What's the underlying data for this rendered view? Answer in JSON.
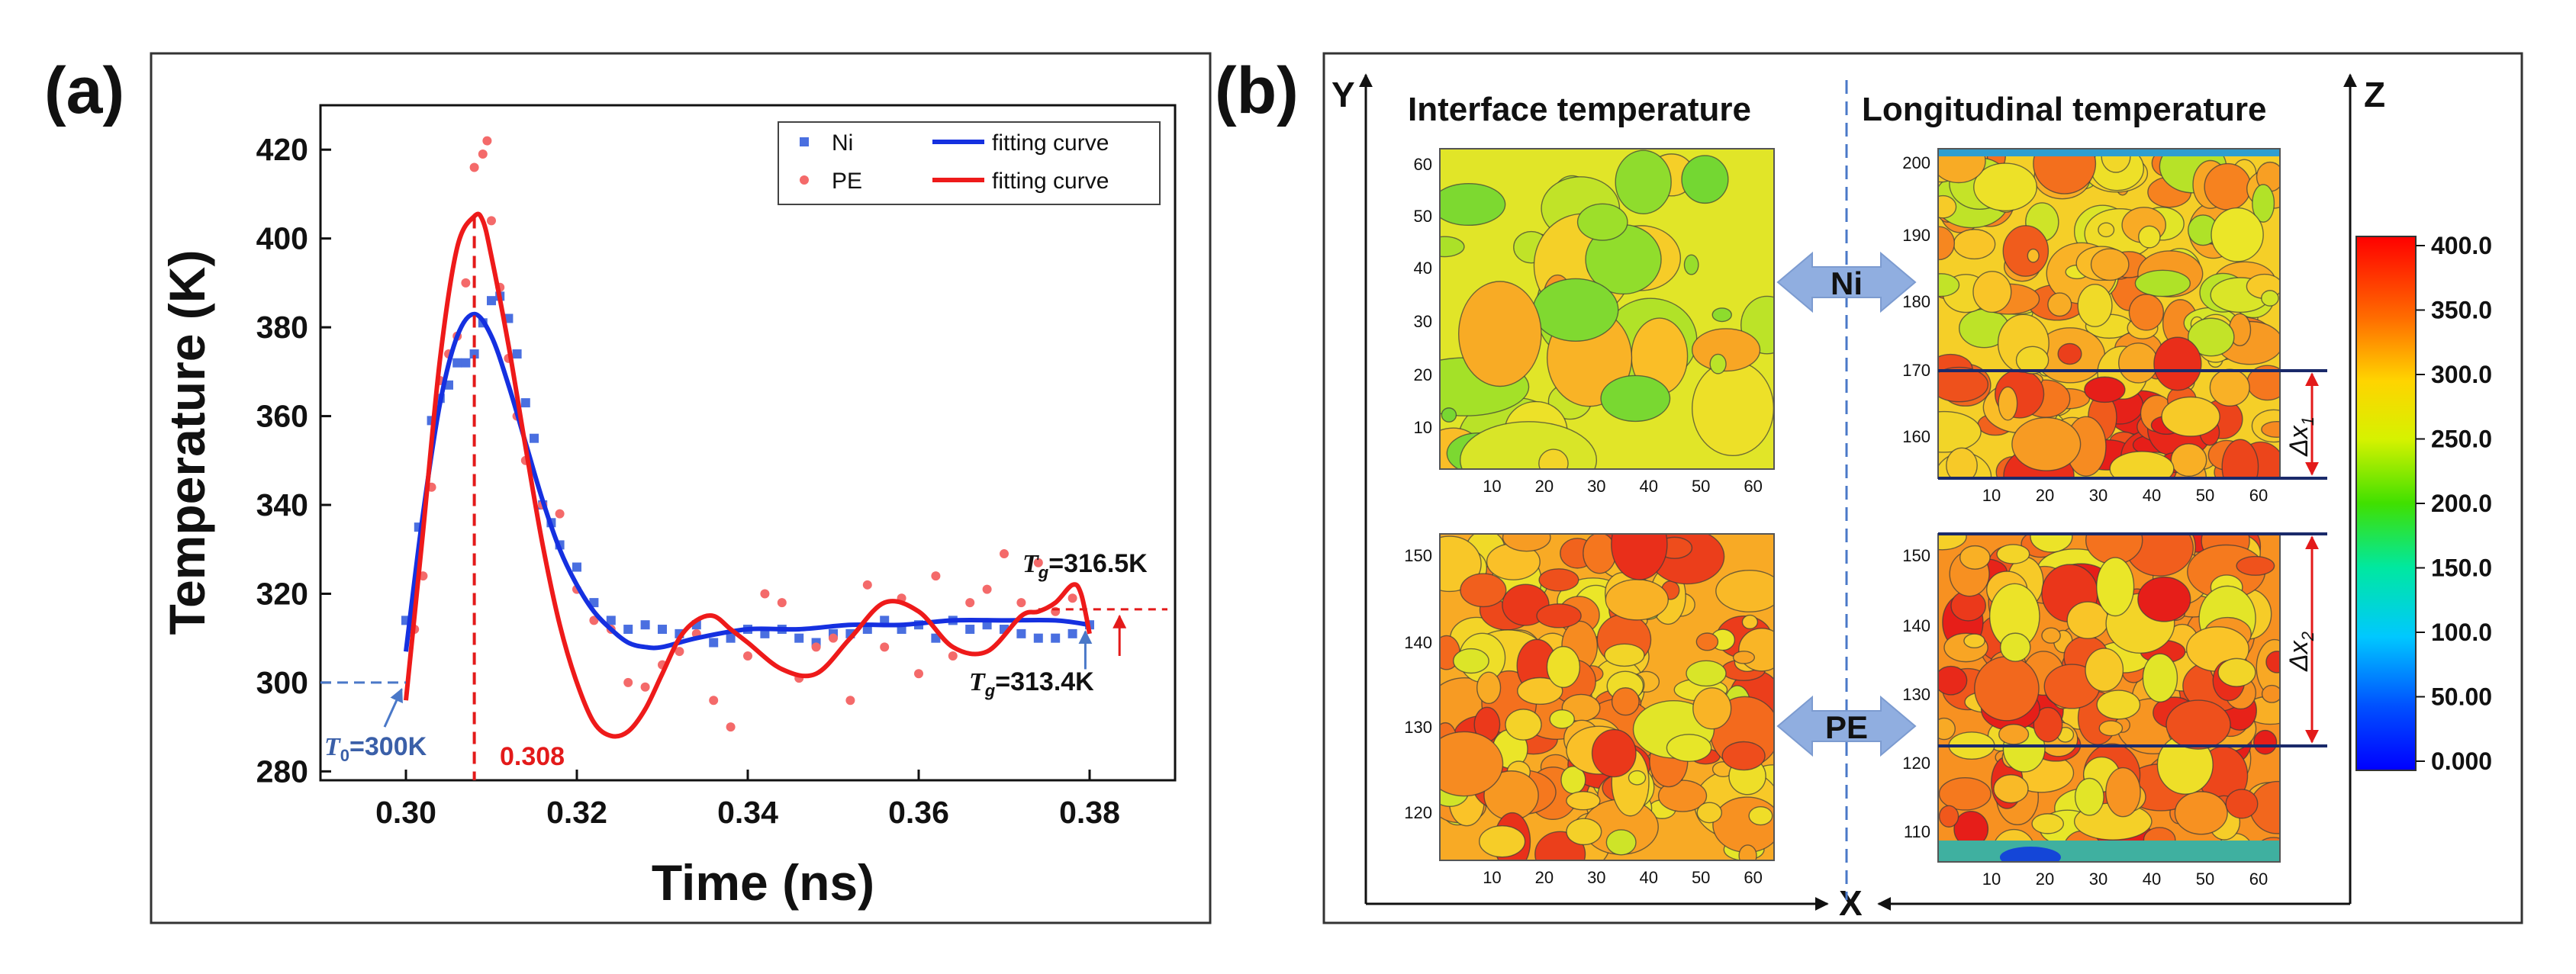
{
  "panel_a": {
    "label": "(a)",
    "chart_data": {
      "type": "line",
      "title": "",
      "xlabel": "Time (ns)",
      "ylabel": "Temperature (K)",
      "xlim": [
        0.29,
        0.39
      ],
      "ylim": [
        278,
        430
      ],
      "xticks": [
        "0.30",
        "0.32",
        "0.34",
        "0.36",
        "0.38"
      ],
      "yticks": [
        "280",
        "300",
        "320",
        "340",
        "360",
        "380",
        "400",
        "420"
      ],
      "series": [
        {
          "name": "Ni",
          "kind": "scatter",
          "color": "#4a6fe0",
          "x": [
            0.3,
            0.3015,
            0.303,
            0.304,
            0.305,
            0.306,
            0.307,
            0.308,
            0.309,
            0.31,
            0.311,
            0.312,
            0.313,
            0.314,
            0.315,
            0.316,
            0.317,
            0.318,
            0.32,
            0.322,
            0.324,
            0.326,
            0.328,
            0.33,
            0.332,
            0.334,
            0.336,
            0.338,
            0.34,
            0.342,
            0.344,
            0.346,
            0.348,
            0.35,
            0.352,
            0.354,
            0.356,
            0.358,
            0.36,
            0.362,
            0.364,
            0.366,
            0.368,
            0.37,
            0.372,
            0.374,
            0.376,
            0.378,
            0.38
          ],
          "y": [
            314,
            335,
            359,
            364,
            367,
            372,
            372,
            374,
            381,
            386,
            387,
            382,
            374,
            363,
            355,
            340,
            336,
            331,
            326,
            318,
            314,
            312,
            313,
            312,
            311,
            313,
            309,
            310,
            312,
            311,
            312,
            310,
            309,
            311,
            311,
            312,
            314,
            312,
            313,
            310,
            314,
            312,
            313,
            312,
            311,
            310,
            310,
            311,
            313
          ]
        },
        {
          "name": "PE",
          "kind": "scatter",
          "color": "#f46a6a",
          "x": [
            0.301,
            0.302,
            0.303,
            0.304,
            0.305,
            0.306,
            0.307,
            0.308,
            0.309,
            0.3095,
            0.31,
            0.311,
            0.312,
            0.313,
            0.314,
            0.316,
            0.318,
            0.32,
            0.322,
            0.324,
            0.326,
            0.328,
            0.33,
            0.332,
            0.334,
            0.336,
            0.338,
            0.34,
            0.342,
            0.344,
            0.346,
            0.348,
            0.35,
            0.352,
            0.354,
            0.356,
            0.358,
            0.36,
            0.362,
            0.364,
            0.366,
            0.368,
            0.37,
            0.372,
            0.374,
            0.376,
            0.378
          ],
          "y": [
            312,
            324,
            344,
            368,
            374,
            378,
            390,
            416,
            419,
            422,
            404,
            389,
            373,
            360,
            350,
            340,
            338,
            321,
            314,
            312,
            300,
            299,
            304,
            307,
            311,
            296,
            290,
            306,
            320,
            318,
            301,
            308,
            310,
            296,
            322,
            308,
            319,
            302,
            324,
            306,
            318,
            321,
            329,
            318,
            327,
            316,
            319
          ]
        },
        {
          "name": "Ni fitting curve",
          "kind": "line",
          "color": "#1530e0",
          "x": [
            0.3,
            0.302,
            0.304,
            0.306,
            0.308,
            0.31,
            0.312,
            0.314,
            0.316,
            0.318,
            0.32,
            0.322,
            0.324,
            0.326,
            0.328,
            0.33,
            0.334,
            0.34,
            0.346,
            0.352,
            0.358,
            0.364,
            0.37,
            0.376,
            0.38
          ],
          "y": [
            307,
            338,
            363,
            378,
            383,
            378,
            367,
            354,
            341,
            330,
            322,
            316,
            312,
            309,
            308,
            308,
            310,
            312,
            312,
            313,
            313,
            314,
            314,
            314,
            313
          ]
        },
        {
          "name": "PE fitting curve",
          "kind": "line",
          "color": "#ee1a1a",
          "x": [
            0.3,
            0.302,
            0.304,
            0.306,
            0.308,
            0.309,
            0.31,
            0.312,
            0.314,
            0.316,
            0.318,
            0.32,
            0.322,
            0.324,
            0.326,
            0.328,
            0.33,
            0.332,
            0.334,
            0.336,
            0.338,
            0.34,
            0.344,
            0.348,
            0.352,
            0.356,
            0.36,
            0.364,
            0.368,
            0.372,
            0.374,
            0.376,
            0.378,
            0.379,
            0.38
          ],
          "y": [
            296,
            334,
            373,
            398,
            405,
            404,
            396,
            376,
            353,
            331,
            313,
            300,
            291,
            288,
            289,
            294,
            302,
            310,
            314,
            315,
            312,
            309,
            303,
            302,
            310,
            318,
            316,
            308,
            307,
            315,
            316,
            318,
            322,
            320,
            311
          ]
        }
      ],
      "legend": {
        "placement": "top-right",
        "entries": [
          {
            "marker": "square",
            "label": "Ni",
            "line_label": "fitting curve"
          },
          {
            "marker": "dot",
            "label": "PE",
            "line_label": "fitting curve"
          }
        ]
      },
      "annotations": {
        "t0_text": "=300K",
        "t0_symbol": "T",
        "t0_sub": "0",
        "peak_value": "0.308",
        "tg_pe_symbol": "T",
        "tg_pe_sub": "g",
        "tg_pe_text": "=316.5K",
        "tg_ni_symbol": "T",
        "tg_ni_sub": "g",
        "tg_ni_text": "=313.4K"
      }
    }
  },
  "panel_b": {
    "label": "(b)",
    "title_left": "Interface temperature",
    "title_right": "Longitudinal temperature",
    "axis_y": "Y",
    "axis_z": "Z",
    "axis_x": "X",
    "material_ni": "Ni",
    "material_pe": "PE",
    "dx1_symbol": "Δx",
    "dx1_sub": "1",
    "dx2_symbol": "Δx",
    "dx2_sub": "2",
    "maps": {
      "ni_interface": {
        "x_ticks": [
          "10",
          "20",
          "30",
          "40",
          "50",
          "60"
        ],
        "y_ticks": [
          "60",
          "50",
          "40",
          "30",
          "20",
          "10"
        ]
      },
      "ni_longitudinal": {
        "x_ticks": [
          "10",
          "20",
          "30",
          "40",
          "50",
          "60"
        ],
        "y_ticks": [
          "200",
          "190",
          "180",
          "170",
          "160"
        ]
      },
      "pe_interface": {
        "x_ticks": [
          "10",
          "20",
          "30",
          "40",
          "50",
          "60"
        ],
        "y_ticks": [
          "150",
          "140",
          "130",
          "120"
        ]
      },
      "pe_longitudinal": {
        "x_ticks": [
          "10",
          "20",
          "30",
          "40",
          "50",
          "60"
        ],
        "y_ticks": [
          "150",
          "140",
          "130",
          "120",
          "110"
        ]
      }
    },
    "colorbar": {
      "ticks": [
        "400.0",
        "350.0",
        "300.0",
        "250.0",
        "200.0",
        "150.0",
        "100.0",
        "50.00",
        "0.000"
      ]
    }
  }
}
